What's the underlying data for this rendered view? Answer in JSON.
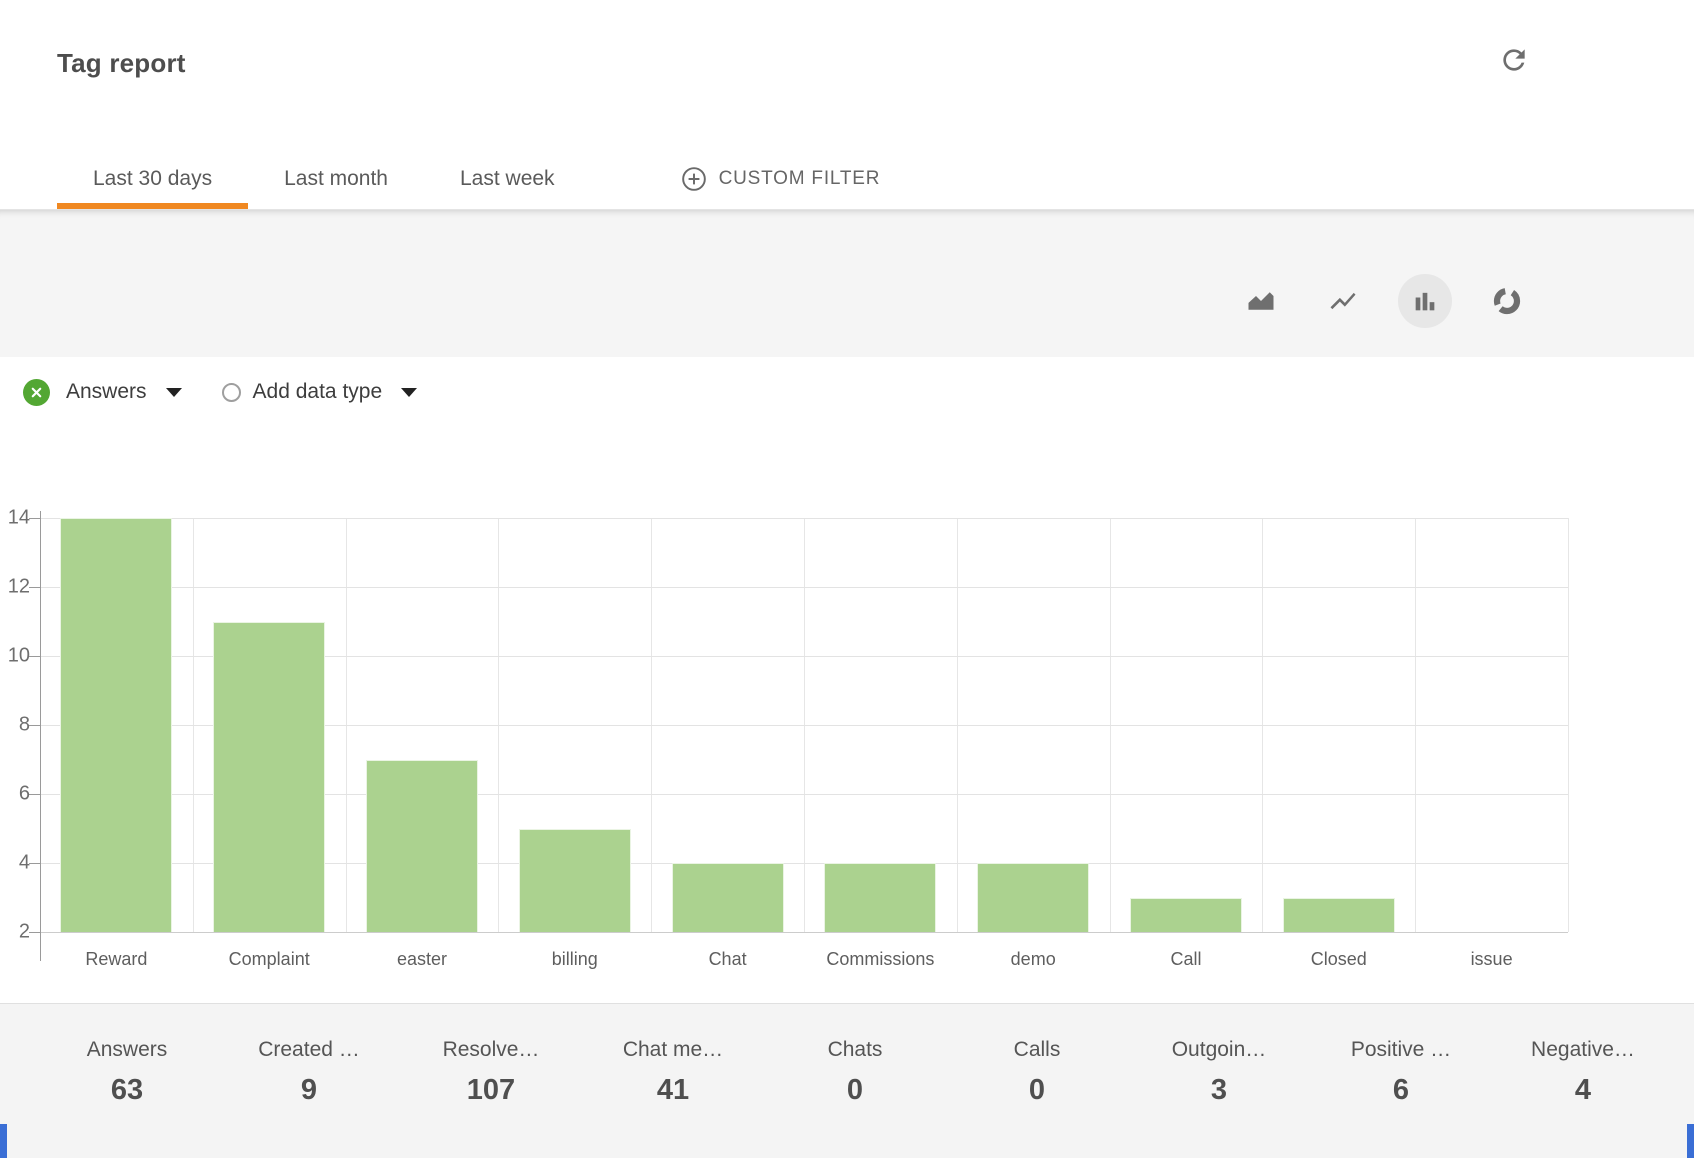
{
  "header": {
    "title": "Tag report"
  },
  "tabs": {
    "items": [
      {
        "label": "Last 30 days",
        "active": true
      },
      {
        "label": "Last month",
        "active": false
      },
      {
        "label": "Last week",
        "active": false
      }
    ],
    "custom_filter_label": "CUSTOM FILTER"
  },
  "toolbar": {
    "chart_types": [
      "area",
      "line",
      "bar",
      "donut"
    ],
    "selected_chart_type": "bar"
  },
  "filters": {
    "series_label": "Answers",
    "add_data_type_label": "Add data type"
  },
  "chart_data": {
    "type": "bar",
    "title": "",
    "xlabel": "",
    "ylabel": "",
    "categories": [
      "Reward",
      "Complaint",
      "easter",
      "billing",
      "Chat",
      "Commissions",
      "demo",
      "Call",
      "Closed",
      "issue"
    ],
    "series": [
      {
        "name": "Answers",
        "values": [
          14,
          11,
          7,
          5,
          4,
          4,
          4,
          3,
          3,
          2
        ]
      }
    ],
    "ylim": [
      2,
      14
    ],
    "ytick_step": 2,
    "yticks": [
      2,
      4,
      6,
      8,
      10,
      12,
      14
    ],
    "grid": true,
    "legend_position": "none",
    "bar_color": "#abd28f"
  },
  "stats": {
    "items": [
      {
        "label": "Answers",
        "value": "63"
      },
      {
        "label": "Created …",
        "value": "9"
      },
      {
        "label": "Resolve…",
        "value": "107"
      },
      {
        "label": "Chat me…",
        "value": "41"
      },
      {
        "label": "Chats",
        "value": "0"
      },
      {
        "label": "Calls",
        "value": "0"
      },
      {
        "label": "Outgoin…",
        "value": "3"
      },
      {
        "label": "Positive …",
        "value": "6"
      },
      {
        "label": "Negative…",
        "value": "4"
      }
    ]
  },
  "colors": {
    "accent_orange": "#f08821",
    "bar_green": "#abd28f",
    "remove_icon_green": "#53a733",
    "toolbar_bg": "#f5f5f5",
    "stats_bg": "#f4f4f4",
    "corner_blue": "#3a6ed5"
  }
}
